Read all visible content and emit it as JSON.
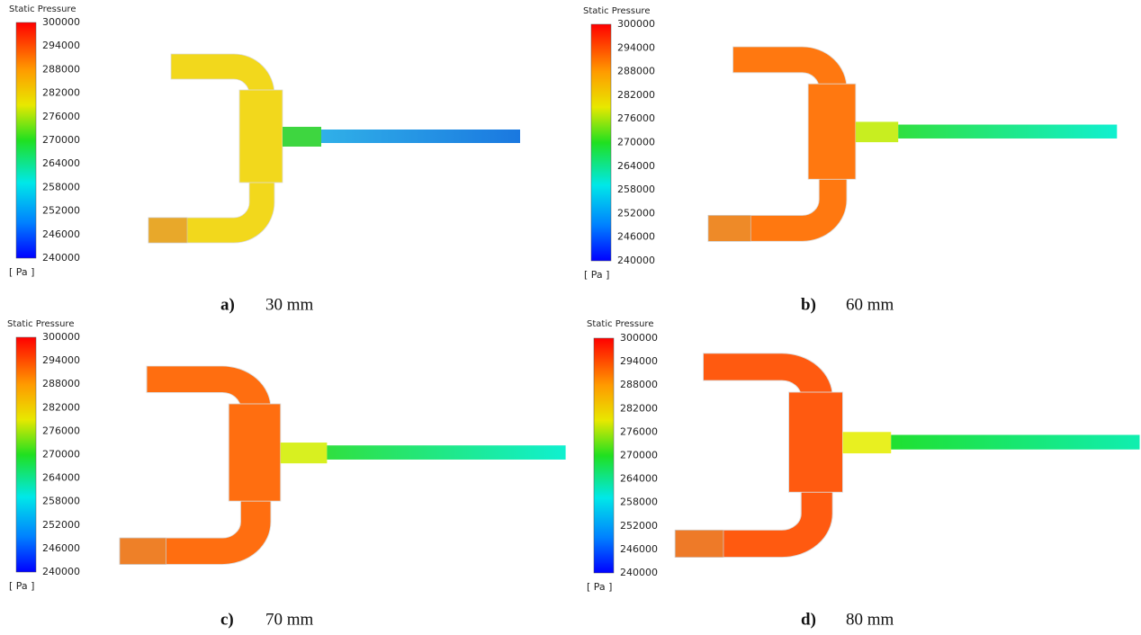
{
  "panels": [
    {
      "legend": {
        "title": "Static Pressure",
        "ticks": [
          300000,
          294000,
          288000,
          282000,
          276000,
          270000,
          264000,
          258000,
          252000,
          246000,
          240000
        ],
        "unit": "[ Pa ]"
      },
      "caption": {
        "letter": "a)",
        "text": "30 mm"
      }
    },
    {
      "legend": {
        "title": "Static Pressure",
        "ticks": [
          300000,
          294000,
          288000,
          282000,
          276000,
          270000,
          264000,
          258000,
          252000,
          246000,
          240000
        ],
        "unit": "[ Pa ]"
      },
      "caption": {
        "letter": "b)",
        "text": "60 mm"
      }
    },
    {
      "legend": {
        "title": "Static Pressure",
        "ticks": [
          300000,
          294000,
          288000,
          282000,
          276000,
          270000,
          264000,
          258000,
          252000,
          246000,
          240000
        ],
        "unit": "[ Pa ]"
      },
      "caption": {
        "letter": "c)",
        "text": "70 mm"
      }
    },
    {
      "legend": {
        "title": "Static Pressure",
        "ticks": [
          300000,
          294000,
          288000,
          282000,
          276000,
          270000,
          264000,
          258000,
          252000,
          246000,
          240000
        ],
        "unit": "[ Pa ]"
      },
      "caption": {
        "letter": "d)",
        "text": "80 mm"
      }
    }
  ]
}
